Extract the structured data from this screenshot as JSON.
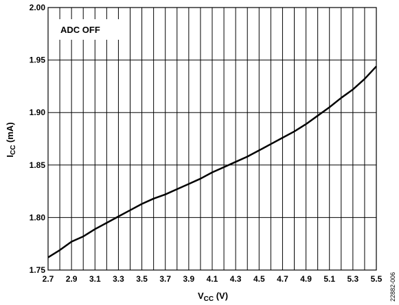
{
  "chart_data": {
    "type": "line",
    "title": "",
    "xlabel": "V",
    "xlabel_sub": "CC",
    "xlabel_unit": " (V)",
    "ylabel": "I",
    "ylabel_sub": "CC",
    "ylabel_unit": " (mA)",
    "xlim": [
      2.7,
      5.5
    ],
    "ylim": [
      1.75,
      2.0
    ],
    "x_ticks": [
      "2.7",
      "2.9",
      "3.1",
      "3.3",
      "3.5",
      "3.7",
      "3.9",
      "4.1",
      "4.3",
      "4.5",
      "4.7",
      "4.9",
      "5.1",
      "5.3",
      "5.5"
    ],
    "y_ticks": [
      "1.75",
      "1.80",
      "1.85",
      "1.90",
      "1.95",
      "2.00"
    ],
    "grid": true,
    "annotation": "ADC OFF",
    "figure_id": "22882-006",
    "series": [
      {
        "color": "#000000",
        "x": [
          2.7,
          2.8,
          2.9,
          3.0,
          3.1,
          3.2,
          3.3,
          3.4,
          3.5,
          3.6,
          3.7,
          3.8,
          3.9,
          4.0,
          4.1,
          4.2,
          4.3,
          4.4,
          4.5,
          4.6,
          4.7,
          4.8,
          4.9,
          5.0,
          5.1,
          5.2,
          5.3,
          5.4,
          5.5
        ],
        "y": [
          1.762,
          1.769,
          1.777,
          1.782,
          1.789,
          1.795,
          1.801,
          1.807,
          1.813,
          1.818,
          1.822,
          1.827,
          1.832,
          1.837,
          1.843,
          1.848,
          1.853,
          1.858,
          1.864,
          1.87,
          1.876,
          1.882,
          1.889,
          1.897,
          1.905,
          1.914,
          1.922,
          1.932,
          1.944
        ]
      }
    ]
  }
}
